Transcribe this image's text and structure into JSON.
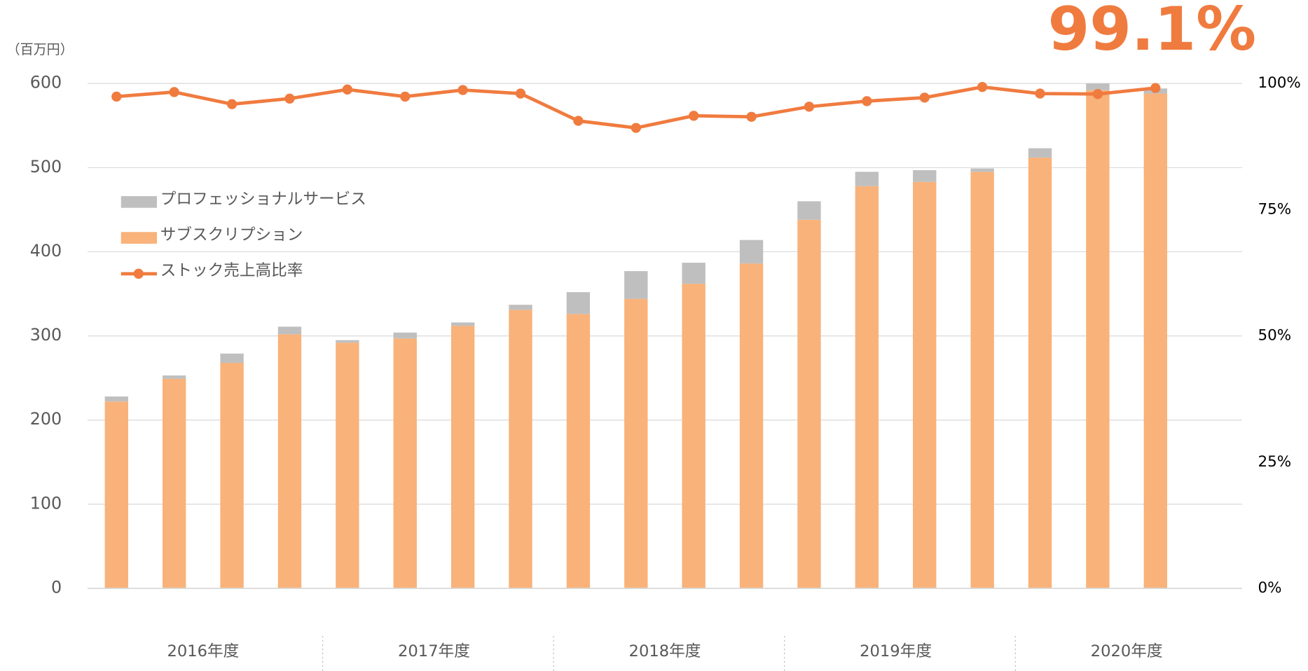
{
  "chart_data": {
    "type": "bar",
    "stacked": true,
    "unit_label": "（百万円）",
    "annotation": "99.1%",
    "categories": [
      null,
      null,
      null,
      null,
      null,
      null,
      null,
      null,
      null,
      null,
      null,
      null,
      null,
      null,
      null,
      null,
      null,
      null,
      null,
      null
    ],
    "groups": [
      {
        "label": "2016年度",
        "count": 4
      },
      {
        "label": "2017年度",
        "count": 4
      },
      {
        "label": "2018年度",
        "count": 4
      },
      {
        "label": "2019年度",
        "count": 4
      },
      {
        "label": "2020年度",
        "count": 4
      }
    ],
    "series": [
      {
        "name": "プロフェッショナルサービス",
        "color": "#bfbfbf",
        "stack": "top",
        "values": [
          6,
          4,
          11,
          9,
          3,
          7,
          4,
          6,
          26,
          33,
          25,
          28,
          22,
          17,
          14,
          4,
          11,
          8,
          6,
          null
        ]
      },
      {
        "name": "サブスクリプション",
        "color": "#f8b27a",
        "stack": "bottom",
        "values": [
          222,
          249,
          268,
          302,
          292,
          297,
          312,
          331,
          326,
          344,
          362,
          386,
          438,
          478,
          483,
          495,
          512,
          592,
          588,
          null
        ]
      },
      {
        "name": "ストック売上高比率",
        "color": "#f07b3f",
        "type": "line",
        "axis": "y2",
        "values": [
          97.4,
          98.3,
          95.9,
          97.0,
          98.8,
          97.4,
          98.7,
          98.0,
          92.6,
          91.2,
          93.6,
          93.4,
          95.4,
          96.5,
          97.2,
          99.3,
          98.0,
          97.9,
          99.1,
          null
        ]
      }
    ],
    "ylim": [
      0,
      600
    ],
    "yticks": [
      0,
      100,
      200,
      300,
      400,
      500,
      600
    ],
    "y2lim": [
      0,
      100
    ],
    "y2ticks": [
      {
        "value": 0,
        "label": "0%"
      },
      {
        "value": 25,
        "label": "25%"
      },
      {
        "value": 50,
        "label": "50%"
      },
      {
        "value": 75,
        "label": "75%"
      },
      {
        "value": 100,
        "label": "100%"
      }
    ],
    "grid": true,
    "legend": "upper left"
  }
}
